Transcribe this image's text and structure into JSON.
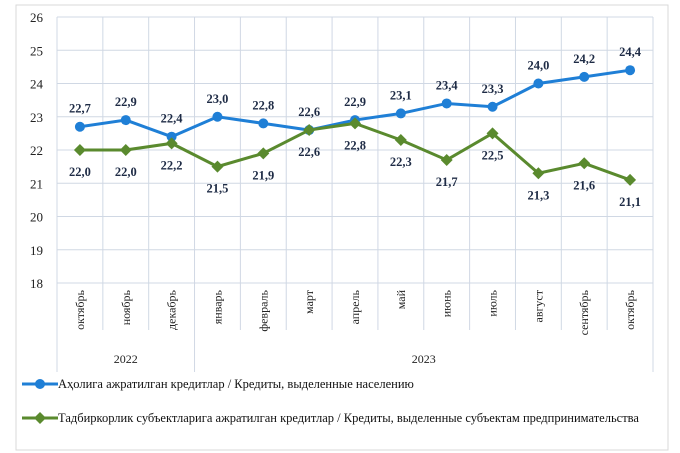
{
  "chart_data": {
    "type": "line",
    "categories": [
      "октябрь",
      "ноябрь",
      "декабрь",
      "январь",
      "февраль",
      "март",
      "апрель",
      "май",
      "июнь",
      "июль",
      "август",
      "сентябрь",
      "октябрь"
    ],
    "year_groups": [
      {
        "label": "2022",
        "span": 3
      },
      {
        "label": "2023",
        "span": 10
      }
    ],
    "series": [
      {
        "name": "Аҳолига ажратилган кредитлар / Кредиты, выделенные населению",
        "color": "#1f7fd6",
        "marker": "circle",
        "values": [
          22.7,
          22.9,
          22.4,
          23.0,
          22.8,
          22.6,
          22.9,
          23.1,
          23.4,
          23.3,
          24.0,
          24.2,
          24.4
        ],
        "labels": [
          "22,7",
          "22,9",
          "22,4",
          "23,0",
          "22,8",
          "22,6",
          "22,9",
          "23,1",
          "23,4",
          "23,3",
          "24,0",
          "24,2",
          "24,4"
        ]
      },
      {
        "name": "Тадбиркорлик субъектларига ажратилган кредитлар / Кредиты, выделенные субъектам предпринимательства",
        "color": "#5a8a2e",
        "marker": "diamond",
        "values": [
          22.0,
          22.0,
          22.2,
          21.5,
          21.9,
          22.6,
          22.8,
          22.3,
          21.7,
          22.5,
          21.3,
          21.6,
          21.1
        ],
        "labels": [
          "22,0",
          "22,0",
          "22,2",
          "21,5",
          "21,9",
          "22,6",
          "22,8",
          "22,3",
          "21,7",
          "22,5",
          "21,3",
          "21,6",
          "21,1"
        ]
      }
    ],
    "ylim": [
      18,
      26
    ],
    "yticks": [
      "18",
      "19",
      "20",
      "21",
      "22",
      "23",
      "24",
      "25",
      "26"
    ],
    "grid": true,
    "legend": "bottom"
  }
}
